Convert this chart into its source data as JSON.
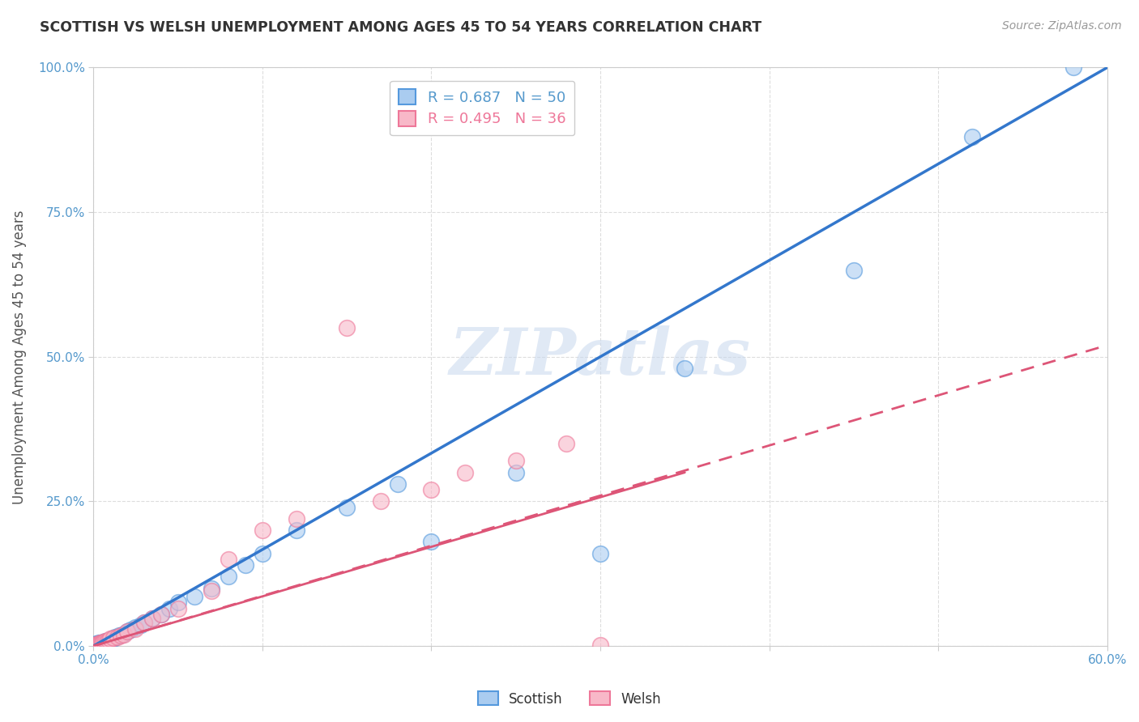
{
  "title": "SCOTTISH VS WELSH UNEMPLOYMENT AMONG AGES 45 TO 54 YEARS CORRELATION CHART",
  "source": "Source: ZipAtlas.com",
  "ylabel": "Unemployment Among Ages 45 to 54 years",
  "xlim": [
    0,
    0.6
  ],
  "ylim": [
    0,
    1.0
  ],
  "xticks": [
    0.0,
    0.1,
    0.2,
    0.3,
    0.4,
    0.5,
    0.6
  ],
  "xticklabels": [
    "0.0%",
    "",
    "",
    "",
    "",
    "",
    "60.0%"
  ],
  "yticks": [
    0.0,
    0.25,
    0.5,
    0.75,
    1.0
  ],
  "yticklabels": [
    "0.0%",
    "25.0%",
    "50.0%",
    "75.0%",
    "100.0%"
  ],
  "scottish_R": 0.687,
  "scottish_N": 50,
  "welsh_R": 0.495,
  "welsh_N": 36,
  "scottish_color": "#aaccf0",
  "welsh_color": "#f8b8c8",
  "scottish_edge_color": "#5599dd",
  "welsh_edge_color": "#ee7799",
  "scottish_line_color": "#3377cc",
  "welsh_line_color": "#dd5577",
  "watermark": "ZIPatlas",
  "watermark_color": "#d0dff0",
  "background_color": "#ffffff",
  "grid_color": "#dddddd",
  "scottish_x": [
    0.001,
    0.001,
    0.001,
    0.002,
    0.002,
    0.002,
    0.003,
    0.003,
    0.003,
    0.004,
    0.004,
    0.005,
    0.005,
    0.006,
    0.006,
    0.007,
    0.007,
    0.008,
    0.008,
    0.009,
    0.01,
    0.011,
    0.012,
    0.013,
    0.015,
    0.017,
    0.02,
    0.022,
    0.025,
    0.028,
    0.03,
    0.035,
    0.04,
    0.045,
    0.05,
    0.06,
    0.07,
    0.08,
    0.09,
    0.1,
    0.12,
    0.15,
    0.18,
    0.2,
    0.25,
    0.3,
    0.35,
    0.45,
    0.52,
    0.58
  ],
  "scottish_y": [
    0.001,
    0.002,
    0.003,
    0.001,
    0.003,
    0.004,
    0.002,
    0.004,
    0.005,
    0.003,
    0.005,
    0.004,
    0.006,
    0.005,
    0.007,
    0.006,
    0.008,
    0.007,
    0.009,
    0.008,
    0.01,
    0.012,
    0.013,
    0.015,
    0.018,
    0.02,
    0.025,
    0.028,
    0.032,
    0.036,
    0.04,
    0.048,
    0.055,
    0.065,
    0.075,
    0.085,
    0.1,
    0.12,
    0.14,
    0.16,
    0.2,
    0.24,
    0.28,
    0.18,
    0.3,
    0.16,
    0.48,
    0.65,
    0.88,
    1.0
  ],
  "welsh_x": [
    0.001,
    0.001,
    0.002,
    0.002,
    0.003,
    0.003,
    0.004,
    0.004,
    0.005,
    0.005,
    0.006,
    0.007,
    0.008,
    0.009,
    0.01,
    0.012,
    0.014,
    0.016,
    0.018,
    0.02,
    0.025,
    0.03,
    0.035,
    0.04,
    0.05,
    0.07,
    0.08,
    0.1,
    0.12,
    0.15,
    0.17,
    0.2,
    0.22,
    0.25,
    0.28,
    0.3
  ],
  "welsh_y": [
    0.001,
    0.002,
    0.002,
    0.003,
    0.003,
    0.004,
    0.004,
    0.005,
    0.005,
    0.006,
    0.007,
    0.008,
    0.009,
    0.01,
    0.012,
    0.014,
    0.016,
    0.018,
    0.02,
    0.025,
    0.03,
    0.04,
    0.048,
    0.055,
    0.065,
    0.095,
    0.15,
    0.2,
    0.22,
    0.55,
    0.25,
    0.27,
    0.3,
    0.32,
    0.35,
    0.001
  ],
  "scottish_line_x0": 0.0,
  "scottish_line_y0": 0.0,
  "scottish_line_x1": 0.6,
  "scottish_line_y1": 1.0,
  "welsh_line_x0": 0.0,
  "welsh_line_y0": 0.0,
  "welsh_line_x1": 0.6,
  "welsh_line_y1": 0.52
}
